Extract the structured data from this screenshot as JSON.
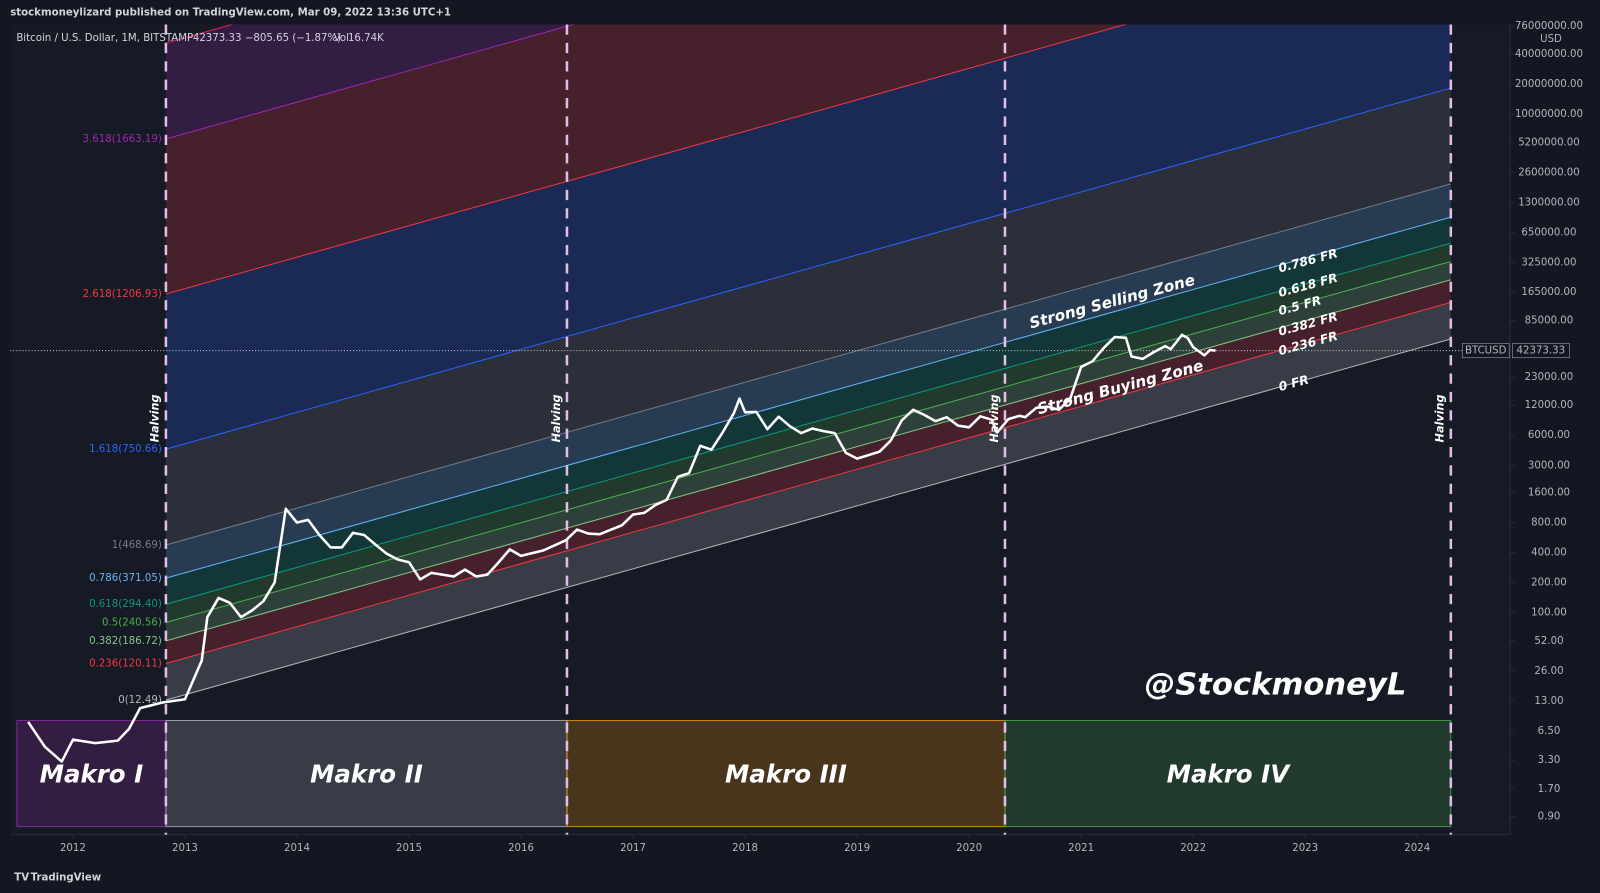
{
  "header": {
    "publisher": "stockmoneylizard published on TradingView.com, Mar 09, 2022 13:36 UTC+1",
    "symbol": "Bitcoin / U.S. Dollar, 1M, BITSTAMP",
    "price": "42373.33",
    "change": "−805.65 (−1.87%)",
    "vol_label": "Vol",
    "vol": "16.74K",
    "currency": "USD",
    "footer": "TradingView"
  },
  "chart_data": {
    "type": "line",
    "log_scale": true,
    "xlim": [
      2011.44,
      2024.83
    ],
    "ylim": [
      0.59,
      79000000
    ],
    "xticks": [
      2012,
      2013,
      2014,
      2015,
      2016,
      2017,
      2018,
      2019,
      2020,
      2021,
      2022,
      2023,
      2024
    ],
    "yticks": [
      {
        "value": 76000000,
        "label": "76000000.00"
      },
      {
        "value": 40000000,
        "label": "40000000.00"
      },
      {
        "value": 20000000,
        "label": "20000000.00"
      },
      {
        "value": 10000000,
        "label": "10000000.00"
      },
      {
        "value": 5200000,
        "label": "5200000.00"
      },
      {
        "value": 2600000,
        "label": "2600000.00"
      },
      {
        "value": 1300000,
        "label": "1300000.00"
      },
      {
        "value": 650000,
        "label": "650000.00"
      },
      {
        "value": 325000,
        "label": "325000.00"
      },
      {
        "value": 165000,
        "label": "165000.00"
      },
      {
        "value": 85000,
        "label": "85000.00"
      },
      {
        "value": 23000,
        "label": "23000.00"
      },
      {
        "value": 12000,
        "label": "12000.00"
      },
      {
        "value": 6000,
        "label": "6000.00"
      },
      {
        "value": 3000,
        "label": "3000.00"
      },
      {
        "value": 1600,
        "label": "1600.00"
      },
      {
        "value": 800,
        "label": "800.00"
      },
      {
        "value": 400,
        "label": "400.00"
      },
      {
        "value": 200,
        "label": "200.00"
      },
      {
        "value": 100,
        "label": "100.00"
      },
      {
        "value": 52,
        "label": "52.00"
      },
      {
        "value": 26,
        "label": "26.00"
      },
      {
        "value": 13,
        "label": "13.00"
      },
      {
        "value": 6.5,
        "label": "6.50"
      },
      {
        "value": 3.3,
        "label": "3.30"
      },
      {
        "value": 1.7,
        "label": "1.70"
      },
      {
        "value": 0.9,
        "label": "0.90"
      }
    ],
    "series": [
      {
        "name": "BTCUSD",
        "color": "#ffffff",
        "x": [
          2011.6,
          2011.75,
          2011.9,
          2012.0,
          2012.2,
          2012.4,
          2012.5,
          2012.6,
          2012.8,
          2012.9,
          2013.0,
          2013.15,
          2013.2,
          2013.3,
          2013.4,
          2013.5,
          2013.6,
          2013.7,
          2013.8,
          2013.9,
          2014.0,
          2014.1,
          2014.2,
          2014.3,
          2014.4,
          2014.5,
          2014.6,
          2014.7,
          2014.8,
          2014.9,
          2015.0,
          2015.1,
          2015.2,
          2015.4,
          2015.5,
          2015.6,
          2015.7,
          2015.8,
          2015.9,
          2016.0,
          2016.2,
          2016.4,
          2016.5,
          2016.6,
          2016.7,
          2016.9,
          2017.0,
          2017.1,
          2017.2,
          2017.3,
          2017.4,
          2017.5,
          2017.6,
          2017.7,
          2017.8,
          2017.9,
          2017.95,
          2018.0,
          2018.1,
          2018.2,
          2018.3,
          2018.4,
          2018.5,
          2018.6,
          2018.7,
          2018.8,
          2018.9,
          2019.0,
          2019.2,
          2019.3,
          2019.4,
          2019.5,
          2019.6,
          2019.7,
          2019.8,
          2019.9,
          2020.0,
          2020.1,
          2020.2,
          2020.25,
          2020.35,
          2020.45,
          2020.5,
          2020.6,
          2020.7,
          2020.8,
          2020.9,
          2021.0,
          2021.1,
          2021.2,
          2021.3,
          2021.4,
          2021.45,
          2021.55,
          2021.65,
          2021.75,
          2021.8,
          2021.9,
          2021.95,
          2022.0,
          2022.1,
          2022.15,
          2022.2
        ],
        "values": [
          8,
          4.5,
          3.2,
          5.3,
          4.9,
          5.2,
          6.8,
          11,
          12.5,
          13,
          13.5,
          33,
          90,
          140,
          125,
          90,
          105,
          130,
          200,
          1100,
          800,
          850,
          600,
          450,
          450,
          630,
          600,
          480,
          390,
          340,
          320,
          215,
          250,
          230,
          270,
          230,
          240,
          320,
          430,
          370,
          420,
          530,
          680,
          620,
          610,
          750,
          960,
          1000,
          1200,
          1350,
          2300,
          2500,
          4700,
          4300,
          6400,
          10000,
          14000,
          10200,
          10300,
          6900,
          9200,
          7400,
          6300,
          7000,
          6600,
          6300,
          4000,
          3500,
          4100,
          5300,
          8500,
          10800,
          9600,
          8300,
          9100,
          7500,
          7200,
          9300,
          8600,
          6400,
          8700,
          9400,
          9100,
          11300,
          11600,
          10800,
          13800,
          29000,
          33000,
          45000,
          58000,
          57000,
          37000,
          35000,
          41000,
          47000,
          43800,
          61000,
          57000,
          46000,
          38000,
          43000,
          42373.33
        ]
      }
    ],
    "last_price": {
      "name": "BTCUSD",
      "value": 42373.33
    },
    "fib_channel": [
      {
        "level": 0,
        "label": "0(12.49)",
        "color": "#b2b5be"
      },
      {
        "level": 0.236,
        "label": "0.236(120.11)",
        "color": "#f23645"
      },
      {
        "level": 0.382,
        "label": "0.382(186.72)",
        "color": "#81c784"
      },
      {
        "level": 0.5,
        "label": "0.5(240.56)",
        "color": "#4caf50"
      },
      {
        "level": 0.618,
        "label": "0.618(294.40)",
        "color": "#089981"
      },
      {
        "level": 0.786,
        "label": "0.786(371.05)",
        "color": "#64b5f6"
      },
      {
        "level": 1,
        "label": "1(468.69)",
        "color": "#787b86"
      },
      {
        "level": 1.618,
        "label": "1.618(750.66)",
        "color": "#2962ff"
      },
      {
        "level": 2.618,
        "label": "2.618(1206.93)",
        "color": "#f23645"
      },
      {
        "level": 3.618,
        "label": "3.618(1663.19)",
        "color": "#9c27b0"
      },
      {
        "level": 4.236,
        "color": "#e91e63"
      }
    ],
    "halvings": [
      {
        "x": 2012.83,
        "label": "Halving"
      },
      {
        "x": 2016.41,
        "label": "Halving"
      },
      {
        "x": 2020.32,
        "label": "Halving"
      },
      {
        "x": 2024.3,
        "label": "Halving"
      }
    ],
    "zones": [
      {
        "label": "Makro I",
        "from": 2011.5,
        "to": 2012.83,
        "color": "#9c27b0"
      },
      {
        "label": "Makro II",
        "from": 2012.83,
        "to": 2016.41,
        "color": "#b2b5be"
      },
      {
        "label": "Makro III",
        "from": 2016.41,
        "to": 2020.32,
        "color": "#ff9800"
      },
      {
        "label": "Makro IV",
        "from": 2020.32,
        "to": 2024.3,
        "color": "#4caf50"
      }
    ],
    "annotations": [
      "Strong Selling Zone",
      "Strong Buying Zone",
      "0.786 FR",
      "0.618 FR",
      "0.5 FR",
      "0.382 FR",
      "0.236 FR",
      "0 FR",
      "@StockmoneyL"
    ]
  }
}
